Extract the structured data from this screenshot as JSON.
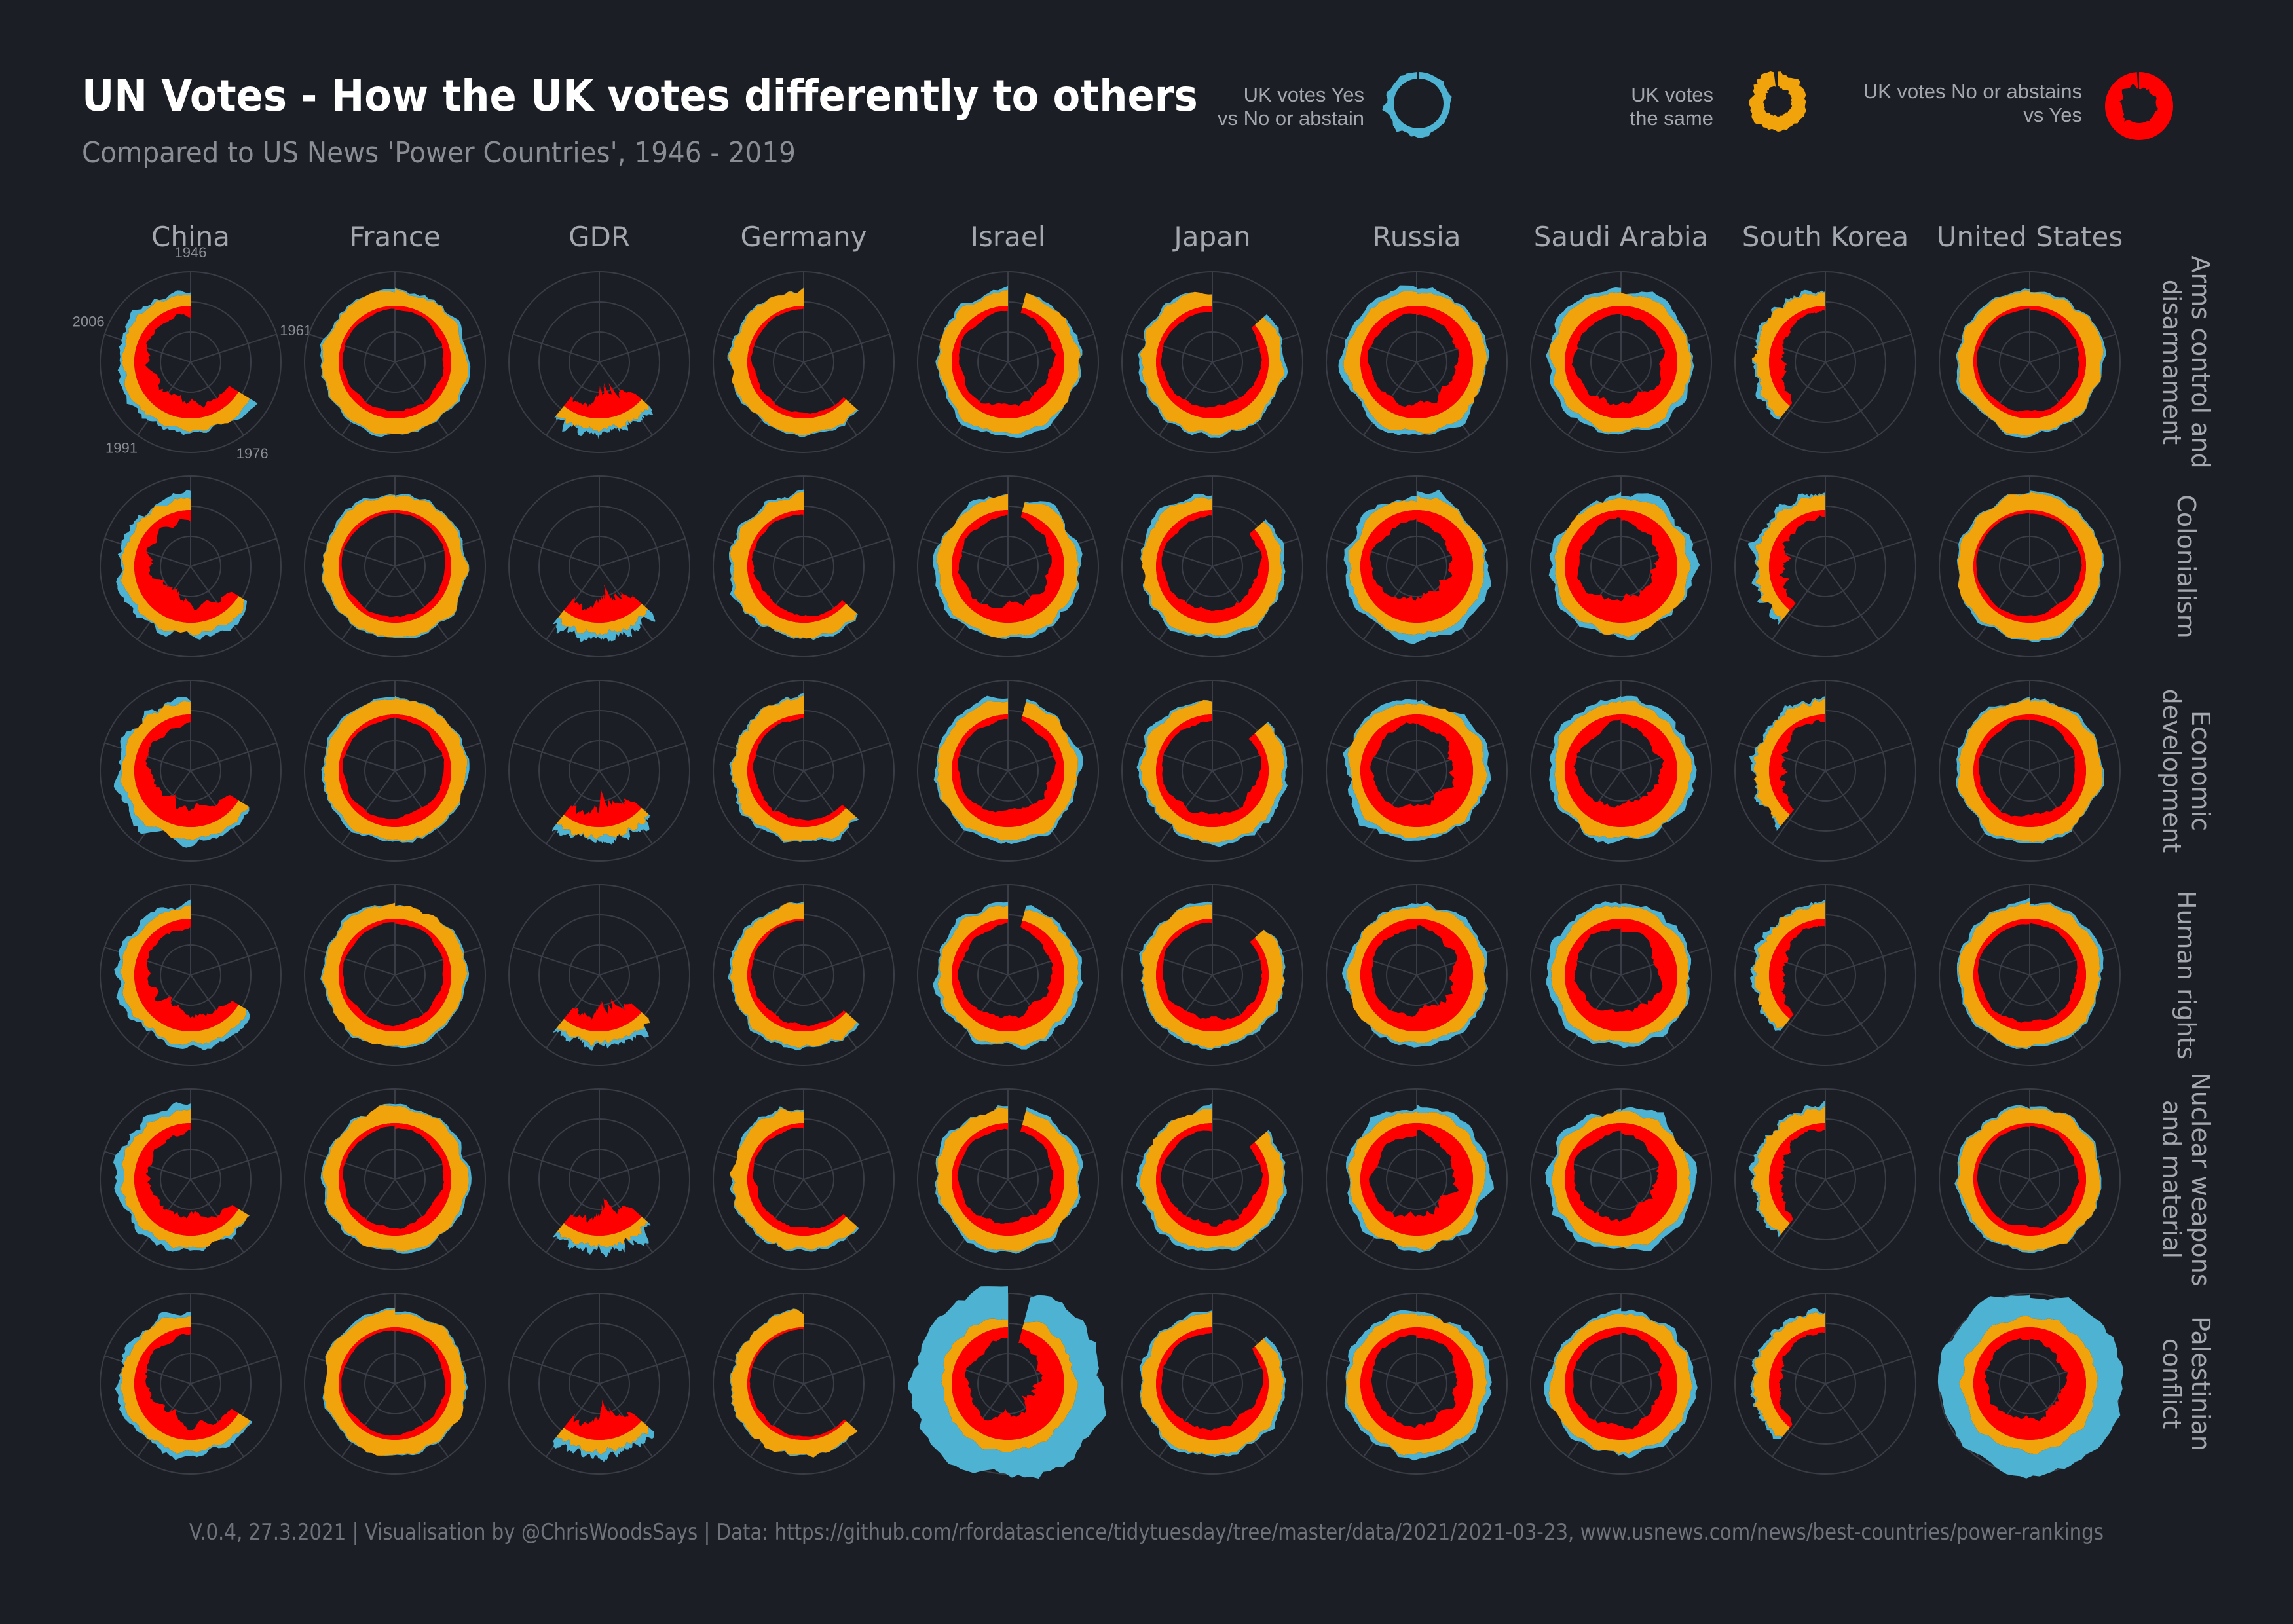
{
  "title": "UN Votes - How the UK votes differently to others",
  "subtitle": "Compared to US News 'Power Countries', 1946 - 2019",
  "legend": {
    "yes_vs_no": {
      "line1": "UK votes Yes",
      "line2": "vs No or abstain",
      "color": "#4eb3d3"
    },
    "same": {
      "line1": "UK votes",
      "line2": "the same",
      "color": "#f0a30a"
    },
    "no_vs_yes": {
      "line1": "UK votes No or abstains",
      "line2": "vs Yes",
      "color": "#ff0000"
    }
  },
  "footer": "V.0.4, 27.3.2021  |  Visualisation by @ChrisWoodsSays  |  Data: https://github.com/rfordatascience/tidytuesday/tree/master/data/2021/2021-03-23, www.usnews.com/news/best-countries/power-rankings",
  "colors": {
    "background": "#1c1e25",
    "grid": "#3a3d46",
    "text": "#a4a7ad"
  },
  "chart_data": {
    "type": "radial-area small multiples",
    "columns": [
      "China",
      "France",
      "GDR",
      "Germany",
      "Israel",
      "Japan",
      "Russia",
      "Saudi Arabia",
      "South Korea",
      "United States"
    ],
    "rows": [
      "Arms control and disarmament",
      "Colonialism",
      "Economic development",
      "Human rights",
      "Nuclear weapons and material",
      "Palestinian conflict"
    ],
    "row_labels": [
      [
        "Arms control and",
        "disarmament"
      ],
      [
        "Colonialism"
      ],
      [
        "Economic",
        "development"
      ],
      [
        "Human rights"
      ],
      [
        "Nuclear weapons",
        "and material"
      ],
      [
        "Palestinian",
        "conflict"
      ]
    ],
    "year_axis": {
      "range": [
        1946,
        2019
      ],
      "tick_labels": [
        "1946",
        "1961",
        "1976",
        "1991",
        "2006"
      ]
    },
    "series": [
      {
        "name": "UK votes Yes vs No or abstain",
        "color": "#4eb3d3"
      },
      {
        "name": "UK votes the same",
        "color": "#f0a30a"
      },
      {
        "name": "UK votes No or abstains vs Yes",
        "color": "#ff0000"
      }
    ],
    "coverage_years": {
      "China": [
        1971,
        2019
      ],
      "France": [
        1946,
        2019
      ],
      "GDR": [
        1973,
        1990
      ],
      "Germany": [
        1973,
        2019
      ],
      "Israel": [
        1949,
        2019
      ],
      "Japan": [
        1956,
        2019
      ],
      "Russia": [
        1946,
        2019
      ],
      "Saudi Arabia": [
        1946,
        2019
      ],
      "South Korea": [
        1991,
        2019
      ],
      "United States": [
        1946,
        2019
      ]
    },
    "mean_share_uk_votes_same": [
      [
        0.55,
        0.8,
        0.4,
        0.85,
        0.7,
        0.75,
        0.6,
        0.6,
        0.7,
        0.82
      ],
      [
        0.45,
        0.85,
        0.35,
        0.8,
        0.65,
        0.7,
        0.45,
        0.45,
        0.65,
        0.85
      ],
      [
        0.5,
        0.8,
        0.4,
        0.8,
        0.7,
        0.7,
        0.5,
        0.5,
        0.7,
        0.75
      ],
      [
        0.55,
        0.8,
        0.4,
        0.85,
        0.65,
        0.75,
        0.55,
        0.55,
        0.7,
        0.78
      ],
      [
        0.5,
        0.8,
        0.35,
        0.8,
        0.7,
        0.7,
        0.5,
        0.5,
        0.7,
        0.8
      ],
      [
        0.6,
        0.85,
        0.4,
        0.9,
        0.35,
        0.75,
        0.6,
        0.65,
        0.75,
        0.45
      ]
    ]
  }
}
